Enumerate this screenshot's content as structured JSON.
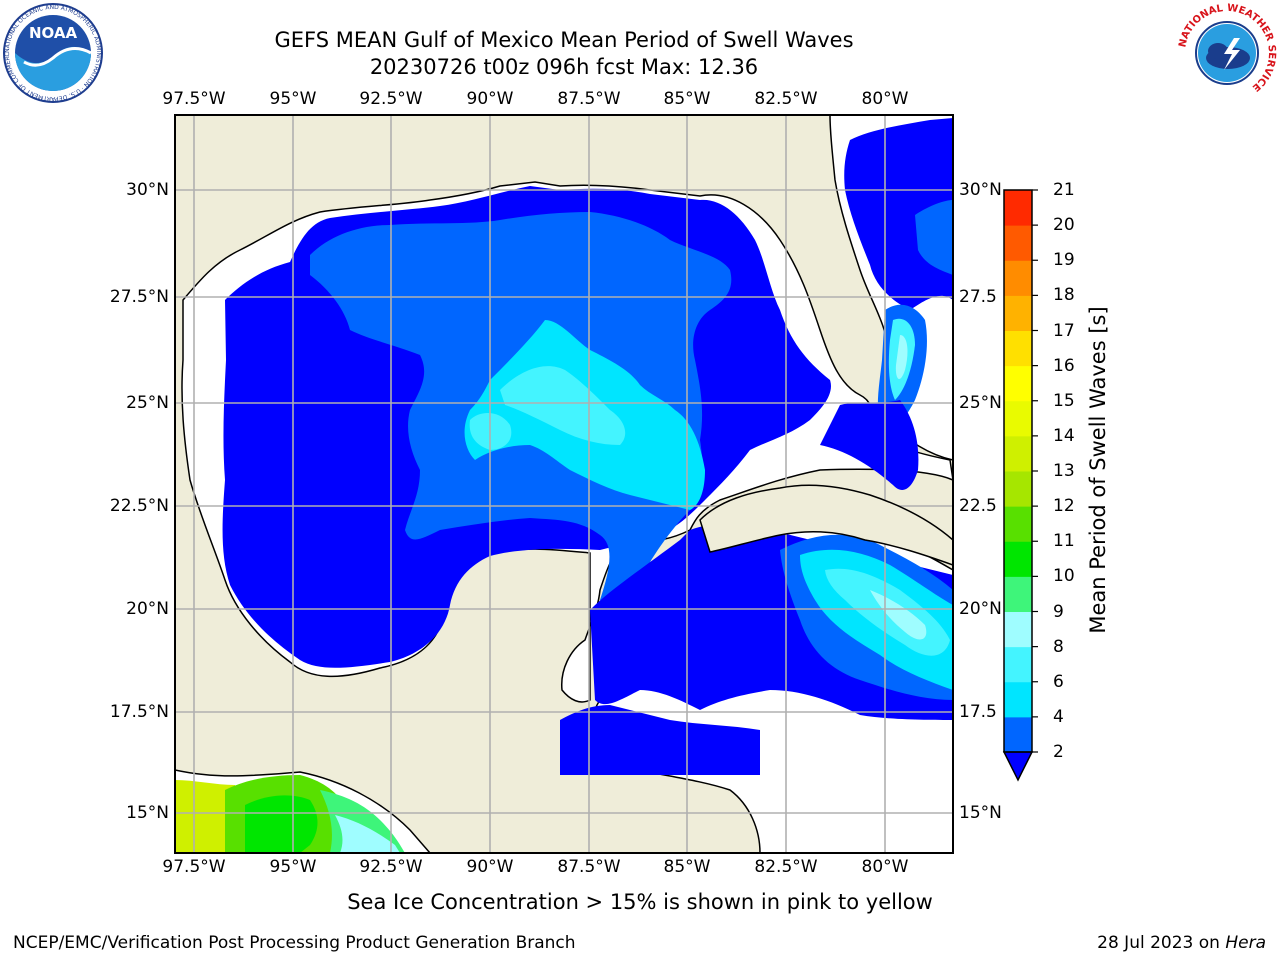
{
  "header": {
    "title_line1": "GEFS MEAN Gulf of Mexico Mean Period of Swell Waves",
    "title_line2": "20230726 t00z 096h fcst   Max: 12.36"
  },
  "logos": {
    "left": {
      "name": "noaa-logo",
      "text": "NOAA",
      "ring_text": "NATIONAL OCEANIC AND ATMOSPHERIC ADMINISTRATION · U.S. DEPARTMENT OF COMMERCE"
    },
    "right": {
      "name": "nws-logo",
      "ring_text": "NATIONAL WEATHER SERVICE"
    }
  },
  "map": {
    "lon_labels": [
      "97.5°W",
      "95°W",
      "92.5°W",
      "90°W",
      "87.5°W",
      "85°W",
      "82.5°W",
      "80°W"
    ],
    "lat_labels_left": [
      "30°N",
      "27.5°N",
      "25°N",
      "22.5°N",
      "20°N",
      "17.5°N",
      "15°N"
    ],
    "lat_labels_right": [
      "30°N",
      "27.5",
      "25°N",
      "22.5",
      "20°N",
      "17.5",
      "15°N"
    ],
    "colors": {
      "land": "#efedd9",
      "grid": "#b0b0b0",
      "no_data": "#ffffff"
    }
  },
  "colorbar": {
    "label": "Mean Period of Swell Waves [s]",
    "ticks": [
      "2",
      "4",
      "6",
      "8",
      "9",
      "10",
      "11",
      "12",
      "13",
      "14",
      "15",
      "16",
      "17",
      "18",
      "19",
      "20",
      "21"
    ],
    "colors": [
      "#0066ff",
      "#00e5ff",
      "#44f4ff",
      "#9ffdff",
      "#3ef57a",
      "#00e600",
      "#58e000",
      "#a6e600",
      "#cff000",
      "#e9fb00",
      "#ffff00",
      "#ffe000",
      "#ffb200",
      "#ff8c00",
      "#ff5a00",
      "#ff2a00"
    ],
    "extend_color": "#0000ff"
  },
  "footer": {
    "ice_note": "Sea Ice Concentration > 15% is shown in pink to yellow",
    "left": "NCEP/EMC/Verification Post Processing Product Generation Branch",
    "right_date": "28 Jul 2023 on ",
    "right_host": "Hera"
  }
}
